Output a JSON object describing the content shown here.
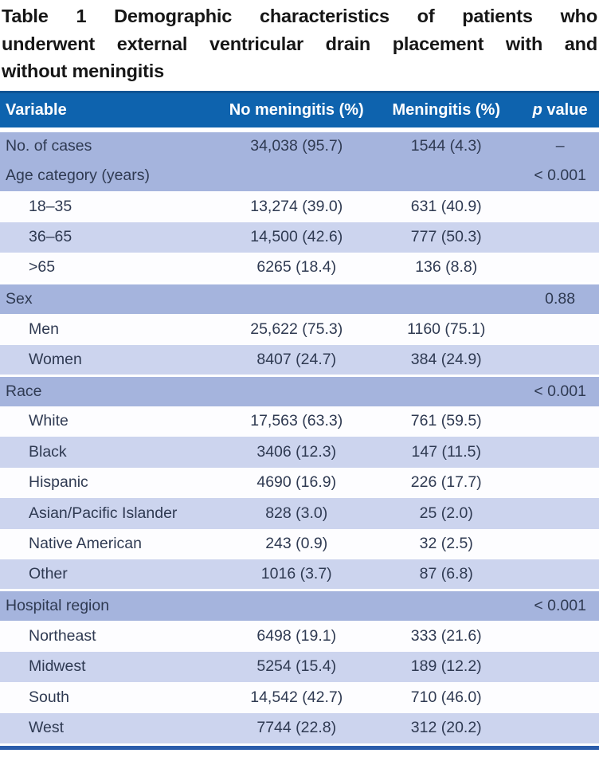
{
  "title": {
    "lines": [
      "Table 1 Demographic characteristics of patients who",
      "underwent external ventricular drain placement with and",
      "without meningitis"
    ]
  },
  "palette": {
    "header_bg": "#0e63ae",
    "header_top_line": "#0d5494",
    "header_text": "#ffffff",
    "medium_row": "#a5b4dd",
    "light_row": "#ccd4ee",
    "white_row": "#fdfdff",
    "body_text": "#2f3a52",
    "title_text": "#161616",
    "bottom_bar": "#2b5dab"
  },
  "table": {
    "header": {
      "variable": "Variable",
      "no_meningitis": "No meningitis (%)",
      "meningitis": "Meningitis (%)",
      "p_italic": "p",
      "p_rest": " value"
    },
    "rows": [
      {
        "type": "data",
        "indent": false,
        "shade": "medium",
        "label": "No. of cases",
        "no": "34,038 (95.7)",
        "men": "1544 (4.3)",
        "p": "–"
      },
      {
        "type": "category",
        "indent": false,
        "shade": "medium",
        "label": "Age category (years)",
        "no": "",
        "men": "",
        "p": "< 0.001"
      },
      {
        "type": "data",
        "indent": true,
        "shade": "white",
        "label": "18–35",
        "no": "13,274 (39.0)",
        "men": "631 (40.9)",
        "p": ""
      },
      {
        "type": "data",
        "indent": true,
        "shade": "light",
        "label": "36–65",
        "no": "14,500 (42.6)",
        "men": "777 (50.3)",
        "p": ""
      },
      {
        "type": "data",
        "indent": true,
        "shade": "white",
        "label": ">65",
        "no": "6265 (18.4)",
        "men": "136 (8.8)",
        "p": ""
      },
      {
        "type": "category",
        "indent": false,
        "shade": "medium",
        "label": "Sex",
        "no": "",
        "men": "",
        "p": "0.88"
      },
      {
        "type": "data",
        "indent": true,
        "shade": "white",
        "label": "Men",
        "no": "25,622 (75.3)",
        "men": "1160 (75.1)",
        "p": ""
      },
      {
        "type": "data",
        "indent": true,
        "shade": "light",
        "label": "Women",
        "no": "8407 (24.7)",
        "men": "384 (24.9)",
        "p": ""
      },
      {
        "type": "category",
        "indent": false,
        "shade": "medium",
        "label": "Race",
        "no": "",
        "men": "",
        "p": "< 0.001"
      },
      {
        "type": "data",
        "indent": true,
        "shade": "white",
        "label": "White",
        "no": "17,563 (63.3)",
        "men": "761 (59.5)",
        "p": ""
      },
      {
        "type": "data",
        "indent": true,
        "shade": "light",
        "label": "Black",
        "no": "3406 (12.3)",
        "men": "147 (11.5)",
        "p": ""
      },
      {
        "type": "data",
        "indent": true,
        "shade": "white",
        "label": "Hispanic",
        "no": "4690 (16.9)",
        "men": "226 (17.7)",
        "p": ""
      },
      {
        "type": "data",
        "indent": true,
        "shade": "light",
        "label": "Asian/Pacific Islander",
        "no": "828 (3.0)",
        "men": "25 (2.0)",
        "p": ""
      },
      {
        "type": "data",
        "indent": true,
        "shade": "white",
        "label": "Native American",
        "no": "243 (0.9)",
        "men": "32 (2.5)",
        "p": ""
      },
      {
        "type": "data",
        "indent": true,
        "shade": "light",
        "label": "Other",
        "no": "1016 (3.7)",
        "men": "87 (6.8)",
        "p": ""
      },
      {
        "type": "category",
        "indent": false,
        "shade": "medium",
        "label": "Hospital region",
        "no": "",
        "men": "",
        "p": "< 0.001"
      },
      {
        "type": "data",
        "indent": true,
        "shade": "white",
        "label": "Northeast",
        "no": "6498 (19.1)",
        "men": "333 (21.6)",
        "p": ""
      },
      {
        "type": "data",
        "indent": true,
        "shade": "light",
        "label": "Midwest",
        "no": "5254 (15.4)",
        "men": "189 (12.2)",
        "p": ""
      },
      {
        "type": "data",
        "indent": true,
        "shade": "white",
        "label": "South",
        "no": "14,542 (42.7)",
        "men": "710 (46.0)",
        "p": ""
      },
      {
        "type": "data",
        "indent": true,
        "shade": "light",
        "label": "West",
        "no": "7744 (22.8)",
        "men": "312 (20.2)",
        "p": ""
      }
    ]
  }
}
